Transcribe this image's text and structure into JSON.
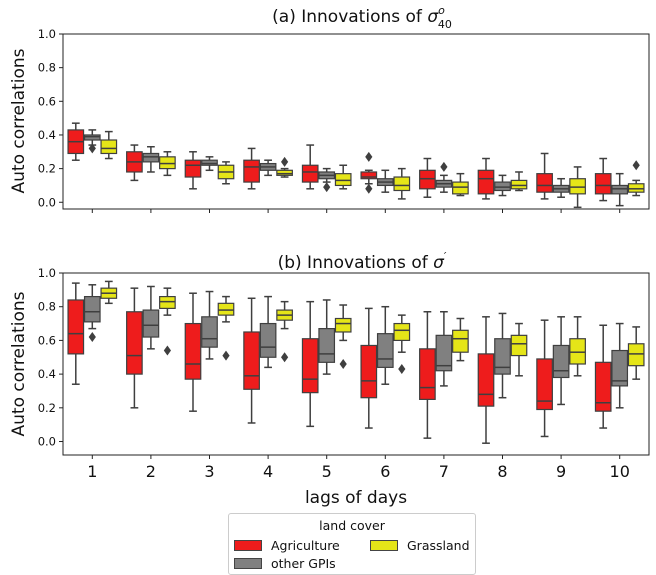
{
  "chart_data": [
    {
      "type": "box",
      "title_main": "(a) Innovations of ",
      "title_sym": "σ",
      "title_sup": "o",
      "title_sub": "40",
      "xlabel": "",
      "ylabel": "Auto correlations",
      "ylim": [
        -0.04,
        1.0
      ],
      "yticks": [
        "0.0",
        "0.2",
        "0.4",
        "0.6",
        "0.8",
        "1.0"
      ],
      "categories": [
        "1",
        "2",
        "3",
        "4",
        "5",
        "6",
        "7",
        "8",
        "9",
        "10"
      ],
      "series": [
        {
          "name": "Agriculture",
          "boxes": [
            {
              "whislo": 0.25,
              "q1": 0.29,
              "med": 0.36,
              "q3": 0.43,
              "whishi": 0.47,
              "fliers": []
            },
            {
              "whislo": 0.13,
              "q1": 0.18,
              "med": 0.24,
              "q3": 0.3,
              "whishi": 0.34,
              "fliers": []
            },
            {
              "whislo": 0.08,
              "q1": 0.15,
              "med": 0.22,
              "q3": 0.25,
              "whishi": 0.3,
              "fliers": []
            },
            {
              "whislo": 0.08,
              "q1": 0.12,
              "med": 0.21,
              "q3": 0.25,
              "whishi": 0.32,
              "fliers": []
            },
            {
              "whislo": 0.08,
              "q1": 0.12,
              "med": 0.18,
              "q3": 0.22,
              "whishi": 0.34,
              "fliers": []
            },
            {
              "whislo": 0.11,
              "q1": 0.14,
              "med": 0.15,
              "q3": 0.18,
              "whishi": 0.19,
              "fliers": [
                0.27,
                0.08
              ]
            },
            {
              "whislo": 0.03,
              "q1": 0.08,
              "med": 0.14,
              "q3": 0.19,
              "whishi": 0.26,
              "fliers": []
            },
            {
              "whislo": 0.02,
              "q1": 0.05,
              "med": 0.14,
              "q3": 0.19,
              "whishi": 0.26,
              "fliers": []
            },
            {
              "whislo": 0.02,
              "q1": 0.06,
              "med": 0.1,
              "q3": 0.17,
              "whishi": 0.29,
              "fliers": []
            },
            {
              "whislo": 0.01,
              "q1": 0.05,
              "med": 0.1,
              "q3": 0.17,
              "whishi": 0.26,
              "fliers": []
            }
          ]
        },
        {
          "name": "other GPIs",
          "boxes": [
            {
              "whislo": 0.34,
              "q1": 0.37,
              "med": 0.39,
              "q3": 0.4,
              "whishi": 0.43,
              "fliers": [
                0.32
              ]
            },
            {
              "whislo": 0.18,
              "q1": 0.24,
              "med": 0.27,
              "q3": 0.29,
              "whishi": 0.33,
              "fliers": []
            },
            {
              "whislo": 0.19,
              "q1": 0.22,
              "med": 0.23,
              "q3": 0.25,
              "whishi": 0.27,
              "fliers": []
            },
            {
              "whislo": 0.16,
              "q1": 0.19,
              "med": 0.21,
              "q3": 0.23,
              "whishi": 0.25,
              "fliers": []
            },
            {
              "whislo": 0.12,
              "q1": 0.14,
              "med": 0.16,
              "q3": 0.18,
              "whishi": 0.2,
              "fliers": [
                0.09
              ]
            },
            {
              "whislo": 0.06,
              "q1": 0.1,
              "med": 0.12,
              "q3": 0.14,
              "whishi": 0.19,
              "fliers": []
            },
            {
              "whislo": 0.06,
              "q1": 0.09,
              "med": 0.11,
              "q3": 0.13,
              "whishi": 0.16,
              "fliers": [
                0.21
              ]
            },
            {
              "whislo": 0.04,
              "q1": 0.07,
              "med": 0.09,
              "q3": 0.12,
              "whishi": 0.16,
              "fliers": []
            },
            {
              "whislo": 0.03,
              "q1": 0.06,
              "med": 0.08,
              "q3": 0.1,
              "whishi": 0.14,
              "fliers": []
            },
            {
              "whislo": -0.02,
              "q1": 0.05,
              "med": 0.08,
              "q3": 0.1,
              "whishi": 0.17,
              "fliers": []
            }
          ]
        },
        {
          "name": "Grassland",
          "boxes": [
            {
              "whislo": 0.26,
              "q1": 0.29,
              "med": 0.32,
              "q3": 0.37,
              "whishi": 0.42,
              "fliers": []
            },
            {
              "whislo": 0.16,
              "q1": 0.2,
              "med": 0.23,
              "q3": 0.27,
              "whishi": 0.3,
              "fliers": []
            },
            {
              "whislo": 0.11,
              "q1": 0.14,
              "med": 0.18,
              "q3": 0.22,
              "whishi": 0.24,
              "fliers": []
            },
            {
              "whislo": 0.15,
              "q1": 0.16,
              "med": 0.17,
              "q3": 0.19,
              "whishi": 0.2,
              "fliers": [
                0.24
              ]
            },
            {
              "whislo": 0.08,
              "q1": 0.1,
              "med": 0.13,
              "q3": 0.17,
              "whishi": 0.22,
              "fliers": []
            },
            {
              "whislo": 0.02,
              "q1": 0.07,
              "med": 0.1,
              "q3": 0.15,
              "whishi": 0.2,
              "fliers": []
            },
            {
              "whislo": 0.04,
              "q1": 0.05,
              "med": 0.09,
              "q3": 0.12,
              "whishi": 0.17,
              "fliers": []
            },
            {
              "whislo": 0.07,
              "q1": 0.08,
              "med": 0.1,
              "q3": 0.13,
              "whishi": 0.18,
              "fliers": []
            },
            {
              "whislo": -0.03,
              "q1": 0.05,
              "med": 0.09,
              "q3": 0.14,
              "whishi": 0.21,
              "fliers": []
            },
            {
              "whislo": 0.04,
              "q1": 0.06,
              "med": 0.08,
              "q3": 0.11,
              "whishi": 0.13,
              "fliers": [
                0.22
              ]
            }
          ]
        }
      ]
    },
    {
      "type": "box",
      "title_main": "(b) Innovations of ",
      "title_sym": "σ",
      "title_sup": "′",
      "title_sub": "",
      "xlabel": "lags of days",
      "ylabel": "Auto correlations",
      "ylim": [
        -0.08,
        1.0
      ],
      "yticks": [
        "0.0",
        "0.2",
        "0.4",
        "0.6",
        "0.8",
        "1.0"
      ],
      "categories": [
        "1",
        "2",
        "3",
        "4",
        "5",
        "6",
        "7",
        "8",
        "9",
        "10"
      ],
      "series": [
        {
          "name": "Agriculture",
          "boxes": [
            {
              "whislo": 0.34,
              "q1": 0.52,
              "med": 0.64,
              "q3": 0.84,
              "whishi": 0.94,
              "fliers": []
            },
            {
              "whislo": 0.2,
              "q1": 0.4,
              "med": 0.51,
              "q3": 0.77,
              "whishi": 0.91,
              "fliers": []
            },
            {
              "whislo": 0.18,
              "q1": 0.37,
              "med": 0.46,
              "q3": 0.7,
              "whishi": 0.88,
              "fliers": []
            },
            {
              "whislo": 0.11,
              "q1": 0.31,
              "med": 0.39,
              "q3": 0.65,
              "whishi": 0.85,
              "fliers": []
            },
            {
              "whislo": 0.09,
              "q1": 0.29,
              "med": 0.37,
              "q3": 0.61,
              "whishi": 0.83,
              "fliers": []
            },
            {
              "whislo": 0.08,
              "q1": 0.26,
              "med": 0.36,
              "q3": 0.57,
              "whishi": 0.79,
              "fliers": []
            },
            {
              "whislo": 0.02,
              "q1": 0.25,
              "med": 0.32,
              "q3": 0.55,
              "whishi": 0.77,
              "fliers": []
            },
            {
              "whislo": -0.01,
              "q1": 0.21,
              "med": 0.28,
              "q3": 0.52,
              "whishi": 0.74,
              "fliers": []
            },
            {
              "whislo": 0.03,
              "q1": 0.19,
              "med": 0.24,
              "q3": 0.49,
              "whishi": 0.72,
              "fliers": []
            },
            {
              "whislo": 0.08,
              "q1": 0.18,
              "med": 0.23,
              "q3": 0.47,
              "whishi": 0.69,
              "fliers": []
            }
          ]
        },
        {
          "name": "other GPIs",
          "boxes": [
            {
              "whislo": 0.67,
              "q1": 0.71,
              "med": 0.77,
              "q3": 0.86,
              "whishi": 0.93,
              "fliers": [
                0.62
              ]
            },
            {
              "whislo": 0.55,
              "q1": 0.62,
              "med": 0.69,
              "q3": 0.78,
              "whishi": 0.92,
              "fliers": []
            },
            {
              "whislo": 0.49,
              "q1": 0.56,
              "med": 0.61,
              "q3": 0.74,
              "whishi": 0.89,
              "fliers": []
            },
            {
              "whislo": 0.44,
              "q1": 0.5,
              "med": 0.56,
              "q3": 0.7,
              "whishi": 0.86,
              "fliers": []
            },
            {
              "whislo": 0.4,
              "q1": 0.47,
              "med": 0.52,
              "q3": 0.67,
              "whishi": 0.84,
              "fliers": []
            },
            {
              "whislo": 0.34,
              "q1": 0.44,
              "med": 0.49,
              "q3": 0.64,
              "whishi": 0.8,
              "fliers": []
            },
            {
              "whislo": 0.33,
              "q1": 0.42,
              "med": 0.45,
              "q3": 0.63,
              "whishi": 0.77,
              "fliers": []
            },
            {
              "whislo": 0.26,
              "q1": 0.4,
              "med": 0.44,
              "q3": 0.61,
              "whishi": 0.76,
              "fliers": []
            },
            {
              "whislo": 0.22,
              "q1": 0.38,
              "med": 0.42,
              "q3": 0.57,
              "whishi": 0.74,
              "fliers": []
            },
            {
              "whislo": 0.2,
              "q1": 0.33,
              "med": 0.36,
              "q3": 0.54,
              "whishi": 0.7,
              "fliers": []
            }
          ]
        },
        {
          "name": "Grassland",
          "boxes": [
            {
              "whislo": 0.82,
              "q1": 0.85,
              "med": 0.88,
              "q3": 0.91,
              "whishi": 0.95,
              "fliers": []
            },
            {
              "whislo": 0.75,
              "q1": 0.79,
              "med": 0.83,
              "q3": 0.86,
              "whishi": 0.91,
              "fliers": [
                0.54
              ]
            },
            {
              "whislo": 0.71,
              "q1": 0.75,
              "med": 0.78,
              "q3": 0.82,
              "whishi": 0.86,
              "fliers": [
                0.51
              ]
            },
            {
              "whislo": 0.67,
              "q1": 0.72,
              "med": 0.75,
              "q3": 0.78,
              "whishi": 0.83,
              "fliers": [
                0.5
              ]
            },
            {
              "whislo": 0.6,
              "q1": 0.65,
              "med": 0.7,
              "q3": 0.73,
              "whishi": 0.81,
              "fliers": [
                0.46
              ]
            },
            {
              "whislo": 0.53,
              "q1": 0.6,
              "med": 0.66,
              "q3": 0.7,
              "whishi": 0.75,
              "fliers": [
                0.43
              ]
            },
            {
              "whislo": 0.48,
              "q1": 0.53,
              "med": 0.61,
              "q3": 0.66,
              "whishi": 0.73,
              "fliers": []
            },
            {
              "whislo": 0.39,
              "q1": 0.51,
              "med": 0.58,
              "q3": 0.63,
              "whishi": 0.7,
              "fliers": []
            },
            {
              "whislo": 0.39,
              "q1": 0.46,
              "med": 0.53,
              "q3": 0.61,
              "whishi": 0.74,
              "fliers": []
            },
            {
              "whislo": 0.37,
              "q1": 0.45,
              "med": 0.52,
              "q3": 0.58,
              "whishi": 0.68,
              "fliers": []
            }
          ]
        }
      ]
    }
  ],
  "legend": {
    "title": "land cover",
    "placement": "bottom-center",
    "items": [
      {
        "label": "Agriculture",
        "color": "#ee1c1c"
      },
      {
        "label": "Grassland",
        "color": "#e5e518"
      },
      {
        "label": "other GPIs",
        "color": "#808080"
      }
    ]
  }
}
